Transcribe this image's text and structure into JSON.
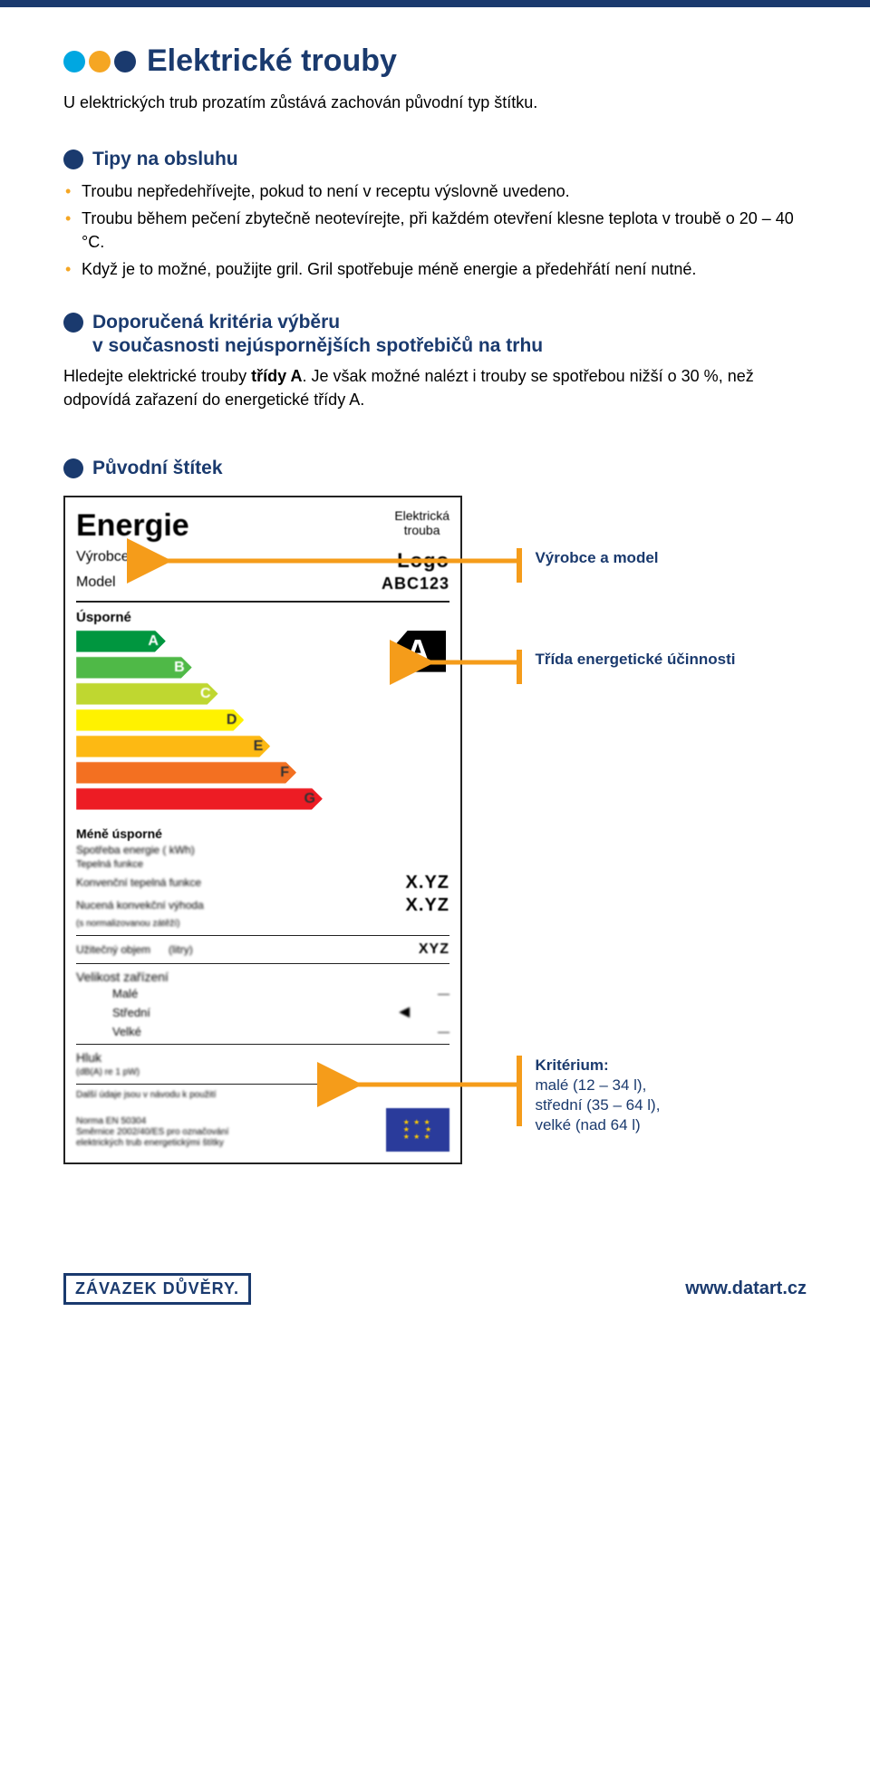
{
  "colors": {
    "navy": "#1a3a6e",
    "orange": "#f59c1a",
    "cyan": "#00a7e1",
    "yellow_dot": "#f5a623",
    "bullet_yellow": "#f5a623"
  },
  "title": "Elektrické trouby",
  "intro": "U elektrických trub prozatím zůstává zachován původní typ štítku.",
  "tips_heading": "Tipy na obsluhu",
  "tips": [
    "Troubu nepředehřívejte, pokud to není v receptu výslovně uvedeno.",
    "Troubu během pečení zbytečně neotevírejte, při každém otevření klesne teplota v troubě o 20 – 40 °C.",
    "Když je to možné, použijte gril. Gril spotřebuje méně energie a předehřátí není nutné."
  ],
  "rec_heading_line1": "Doporučená kritéria výběru",
  "rec_heading_line2": "v současnosti nejúspornějších spotřebičů na trhu",
  "rec_body_pre": "Hledejte elektrické trouby ",
  "rec_body_bold": "třídy A",
  "rec_body_post": ". Je však možné nalézt i trouby se  spotřebou nižší o 30 %, než odpovídá zařazení do energetické třídy A.",
  "original_label_heading": "Původní štítek",
  "energy_label": {
    "title": "Energie",
    "appliance_type": "Elektrická\ntrouba",
    "manufacturer_label": "Výrobce",
    "manufacturer_value": "Logo",
    "model_label": "Model",
    "model_value": "ABC123",
    "efficient_label": "Úsporné",
    "less_efficient_label": "Méně úsporné",
    "class_marker": "A",
    "classes": [
      {
        "letter": "A",
        "width_pct": 24,
        "color": "#00963f"
      },
      {
        "letter": "B",
        "width_pct": 31,
        "color": "#4fb947"
      },
      {
        "letter": "C",
        "width_pct": 38,
        "color": "#bfd730"
      },
      {
        "letter": "D",
        "width_pct": 45,
        "color": "#fff200"
      },
      {
        "letter": "E",
        "width_pct": 52,
        "color": "#fdb913"
      },
      {
        "letter": "F",
        "width_pct": 59,
        "color": "#f37021"
      },
      {
        "letter": "G",
        "width_pct": 66,
        "color": "#ed1c24"
      }
    ],
    "consumption_label": "Spotřeba energie   ( kWh)",
    "fn_line": "Tepelná funkce",
    "heating1_label": "Konvenční tepelná funkce",
    "heating1_value": "X.YZ",
    "heating2_label": "Nucená konvekční výhoda",
    "heating2_value": "X.YZ",
    "fine_note": "(s normalizovanou zátěží)",
    "volume_label": "Užitečný objem",
    "volume_unit": "(litry)",
    "volume_value": "XYZ",
    "size_label": "Velikost zařízení",
    "size_small": "Malé",
    "size_med": "Střední",
    "size_large": "Velké",
    "noise_label": "Hluk",
    "noise_unit": "(dB(A) re 1 pW)",
    "bottom_fine1": "Další údaje jsou v návodu k použití",
    "bottom_fine2": "Norma EN 50304\nSměrnice 2002/40/ES pro označování\nelektrických trub energetickými štítky"
  },
  "callouts": {
    "c1": "Výrobce a model",
    "c2": "Třída energetické účinnosti",
    "c3_title": "Kritérium:",
    "c3_l1": "malé (12 – 34 l),",
    "c3_l2": "střední (35 – 64 l),",
    "c3_l3": "velké (nad 64 l)"
  },
  "footer": {
    "pledge": "ZÁVAZEK DŮVĚRY.",
    "url": "www.datart.cz"
  }
}
